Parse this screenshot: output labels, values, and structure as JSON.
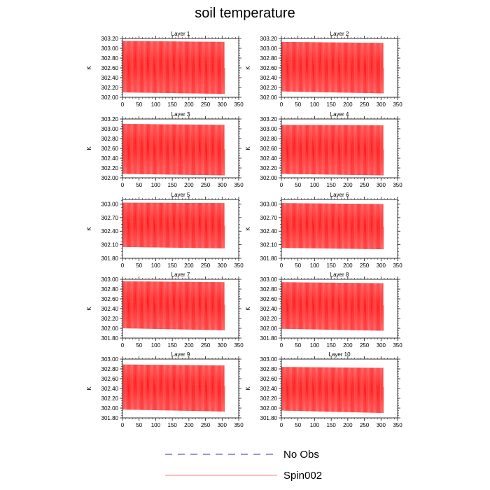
{
  "title": "soil temperature",
  "colors": {
    "spin": "#ff0000",
    "noobs": "#3333aa",
    "axis": "#000000"
  },
  "legend": [
    {
      "label": "No Obs",
      "style": "dashed"
    },
    {
      "label": "Spin002",
      "style": "solid"
    }
  ],
  "chart_data": [
    {
      "type": "line",
      "title": "Layer 1",
      "ylabel": "K",
      "xlim": [
        0,
        350
      ],
      "ylim": [
        302.0,
        303.2
      ],
      "xticks": [
        0,
        50,
        100,
        150,
        200,
        250,
        300,
        350
      ],
      "yticks": [
        "302.00",
        "302.20",
        "302.40",
        "302.60",
        "302.80",
        "303.00",
        "303.20"
      ],
      "series": [
        {
          "name": "Spin002",
          "days": 307,
          "daily_max": [
            303.15,
            303.13
          ],
          "daily_min": [
            302.1,
            302.07
          ],
          "end_value": 302.6
        },
        {
          "name": "No Obs",
          "values": []
        }
      ]
    },
    {
      "type": "line",
      "title": "Layer 2",
      "ylabel": "K",
      "xlim": [
        0,
        350
      ],
      "ylim": [
        302.0,
        303.2
      ],
      "xticks": [
        0,
        50,
        100,
        150,
        200,
        250,
        300,
        350
      ],
      "yticks": [
        "302.00",
        "302.20",
        "302.40",
        "302.60",
        "302.80",
        "303.00",
        "303.20"
      ],
      "series": [
        {
          "name": "Spin002",
          "days": 307,
          "daily_max": [
            303.13,
            303.11
          ],
          "daily_min": [
            302.12,
            302.08
          ],
          "end_value": 302.6
        },
        {
          "name": "No Obs",
          "values": []
        }
      ]
    },
    {
      "type": "line",
      "title": "Layer 3",
      "ylabel": "K",
      "xlim": [
        0,
        350
      ],
      "ylim": [
        302.0,
        303.2
      ],
      "xticks": [
        0,
        50,
        100,
        150,
        200,
        250,
        300,
        350
      ],
      "yticks": [
        "302.00",
        "302.20",
        "302.40",
        "302.60",
        "302.80",
        "303.00",
        "303.20"
      ],
      "series": [
        {
          "name": "Spin002",
          "days": 307,
          "daily_max": [
            303.1,
            303.08
          ],
          "daily_min": [
            302.08,
            302.05
          ],
          "end_value": 302.58
        },
        {
          "name": "No Obs",
          "values": []
        }
      ]
    },
    {
      "type": "line",
      "title": "Layer 4",
      "ylabel": "K",
      "xlim": [
        0,
        350
      ],
      "ylim": [
        302.0,
        303.2
      ],
      "xticks": [
        0,
        50,
        100,
        150,
        200,
        250,
        300,
        350
      ],
      "yticks": [
        "302.00",
        "302.20",
        "302.40",
        "302.60",
        "302.80",
        "303.00",
        "303.20"
      ],
      "series": [
        {
          "name": "Spin002",
          "days": 307,
          "daily_max": [
            303.08,
            303.07
          ],
          "daily_min": [
            302.08,
            302.05
          ],
          "end_value": 302.58
        },
        {
          "name": "No Obs",
          "values": []
        }
      ]
    },
    {
      "type": "line",
      "title": "Layer 5",
      "ylabel": "K",
      "xlim": [
        0,
        350
      ],
      "ylim": [
        301.8,
        303.1
      ],
      "xticks": [
        0,
        50,
        100,
        150,
        200,
        250,
        300,
        350
      ],
      "yticks": [
        "301.80",
        "302.10",
        "302.40",
        "302.70",
        "303.00"
      ],
      "series": [
        {
          "name": "Spin002",
          "days": 307,
          "daily_max": [
            303.03,
            303.02
          ],
          "daily_min": [
            302.05,
            302.02
          ],
          "end_value": 302.52
        },
        {
          "name": "No Obs",
          "values": []
        }
      ]
    },
    {
      "type": "line",
      "title": "Layer 6",
      "ylabel": "K",
      "xlim": [
        0,
        350
      ],
      "ylim": [
        301.8,
        303.1
      ],
      "xticks": [
        0,
        50,
        100,
        150,
        200,
        250,
        300,
        350
      ],
      "yticks": [
        "301.80",
        "302.10",
        "302.40",
        "302.70",
        "303.00"
      ],
      "series": [
        {
          "name": "Spin002",
          "days": 307,
          "daily_max": [
            303.02,
            303.0
          ],
          "daily_min": [
            302.03,
            302.0
          ],
          "end_value": 302.5
        },
        {
          "name": "No Obs",
          "values": []
        }
      ]
    },
    {
      "type": "line",
      "title": "Layer 7",
      "ylabel": "K",
      "xlim": [
        0,
        350
      ],
      "ylim": [
        301.8,
        303.0
      ],
      "xticks": [
        0,
        50,
        100,
        150,
        200,
        250,
        300,
        350
      ],
      "yticks": [
        "301.80",
        "302.00",
        "302.20",
        "302.40",
        "302.60",
        "302.80",
        "303.00"
      ],
      "series": [
        {
          "name": "Spin002",
          "days": 307,
          "daily_max": [
            302.96,
            302.94
          ],
          "daily_min": [
            302.0,
            301.96
          ],
          "end_value": 302.48
        },
        {
          "name": "No Obs",
          "values": []
        }
      ]
    },
    {
      "type": "line",
      "title": "Layer 8",
      "ylabel": "K",
      "xlim": [
        0,
        350
      ],
      "ylim": [
        301.8,
        303.0
      ],
      "xticks": [
        0,
        50,
        100,
        150,
        200,
        250,
        300,
        350
      ],
      "yticks": [
        "301.80",
        "302.00",
        "302.20",
        "302.40",
        "302.60",
        "302.80",
        "303.00"
      ],
      "series": [
        {
          "name": "Spin002",
          "days": 307,
          "daily_max": [
            302.94,
            302.92
          ],
          "daily_min": [
            301.99,
            301.95
          ],
          "end_value": 302.47
        },
        {
          "name": "No Obs",
          "values": []
        }
      ]
    },
    {
      "type": "line",
      "title": "Layer 9",
      "ylabel": "K",
      "xlim": [
        0,
        350
      ],
      "ylim": [
        301.8,
        303.0
      ],
      "xticks": [
        0,
        50,
        100,
        150,
        200,
        250,
        300,
        350
      ],
      "yticks": [
        "301.80",
        "302.00",
        "302.20",
        "302.40",
        "302.60",
        "302.80",
        "303.00"
      ],
      "series": [
        {
          "name": "Spin002",
          "days": 307,
          "daily_max": [
            302.89,
            302.87
          ],
          "daily_min": [
            301.97,
            301.93
          ],
          "end_value": 302.45
        },
        {
          "name": "No Obs",
          "values": []
        }
      ]
    },
    {
      "type": "line",
      "title": "Layer 10",
      "ylabel": "K",
      "xlim": [
        0,
        350
      ],
      "ylim": [
        301.8,
        303.0
      ],
      "xticks": [
        0,
        50,
        100,
        150,
        200,
        250,
        300,
        350
      ],
      "yticks": [
        "301.80",
        "302.00",
        "302.20",
        "302.40",
        "302.60",
        "302.80",
        "303.00"
      ],
      "series": [
        {
          "name": "Spin002",
          "days": 307,
          "daily_max": [
            302.84,
            302.82
          ],
          "daily_min": [
            301.95,
            301.9
          ],
          "end_value": 302.43
        },
        {
          "name": "No Obs",
          "values": []
        }
      ]
    }
  ]
}
